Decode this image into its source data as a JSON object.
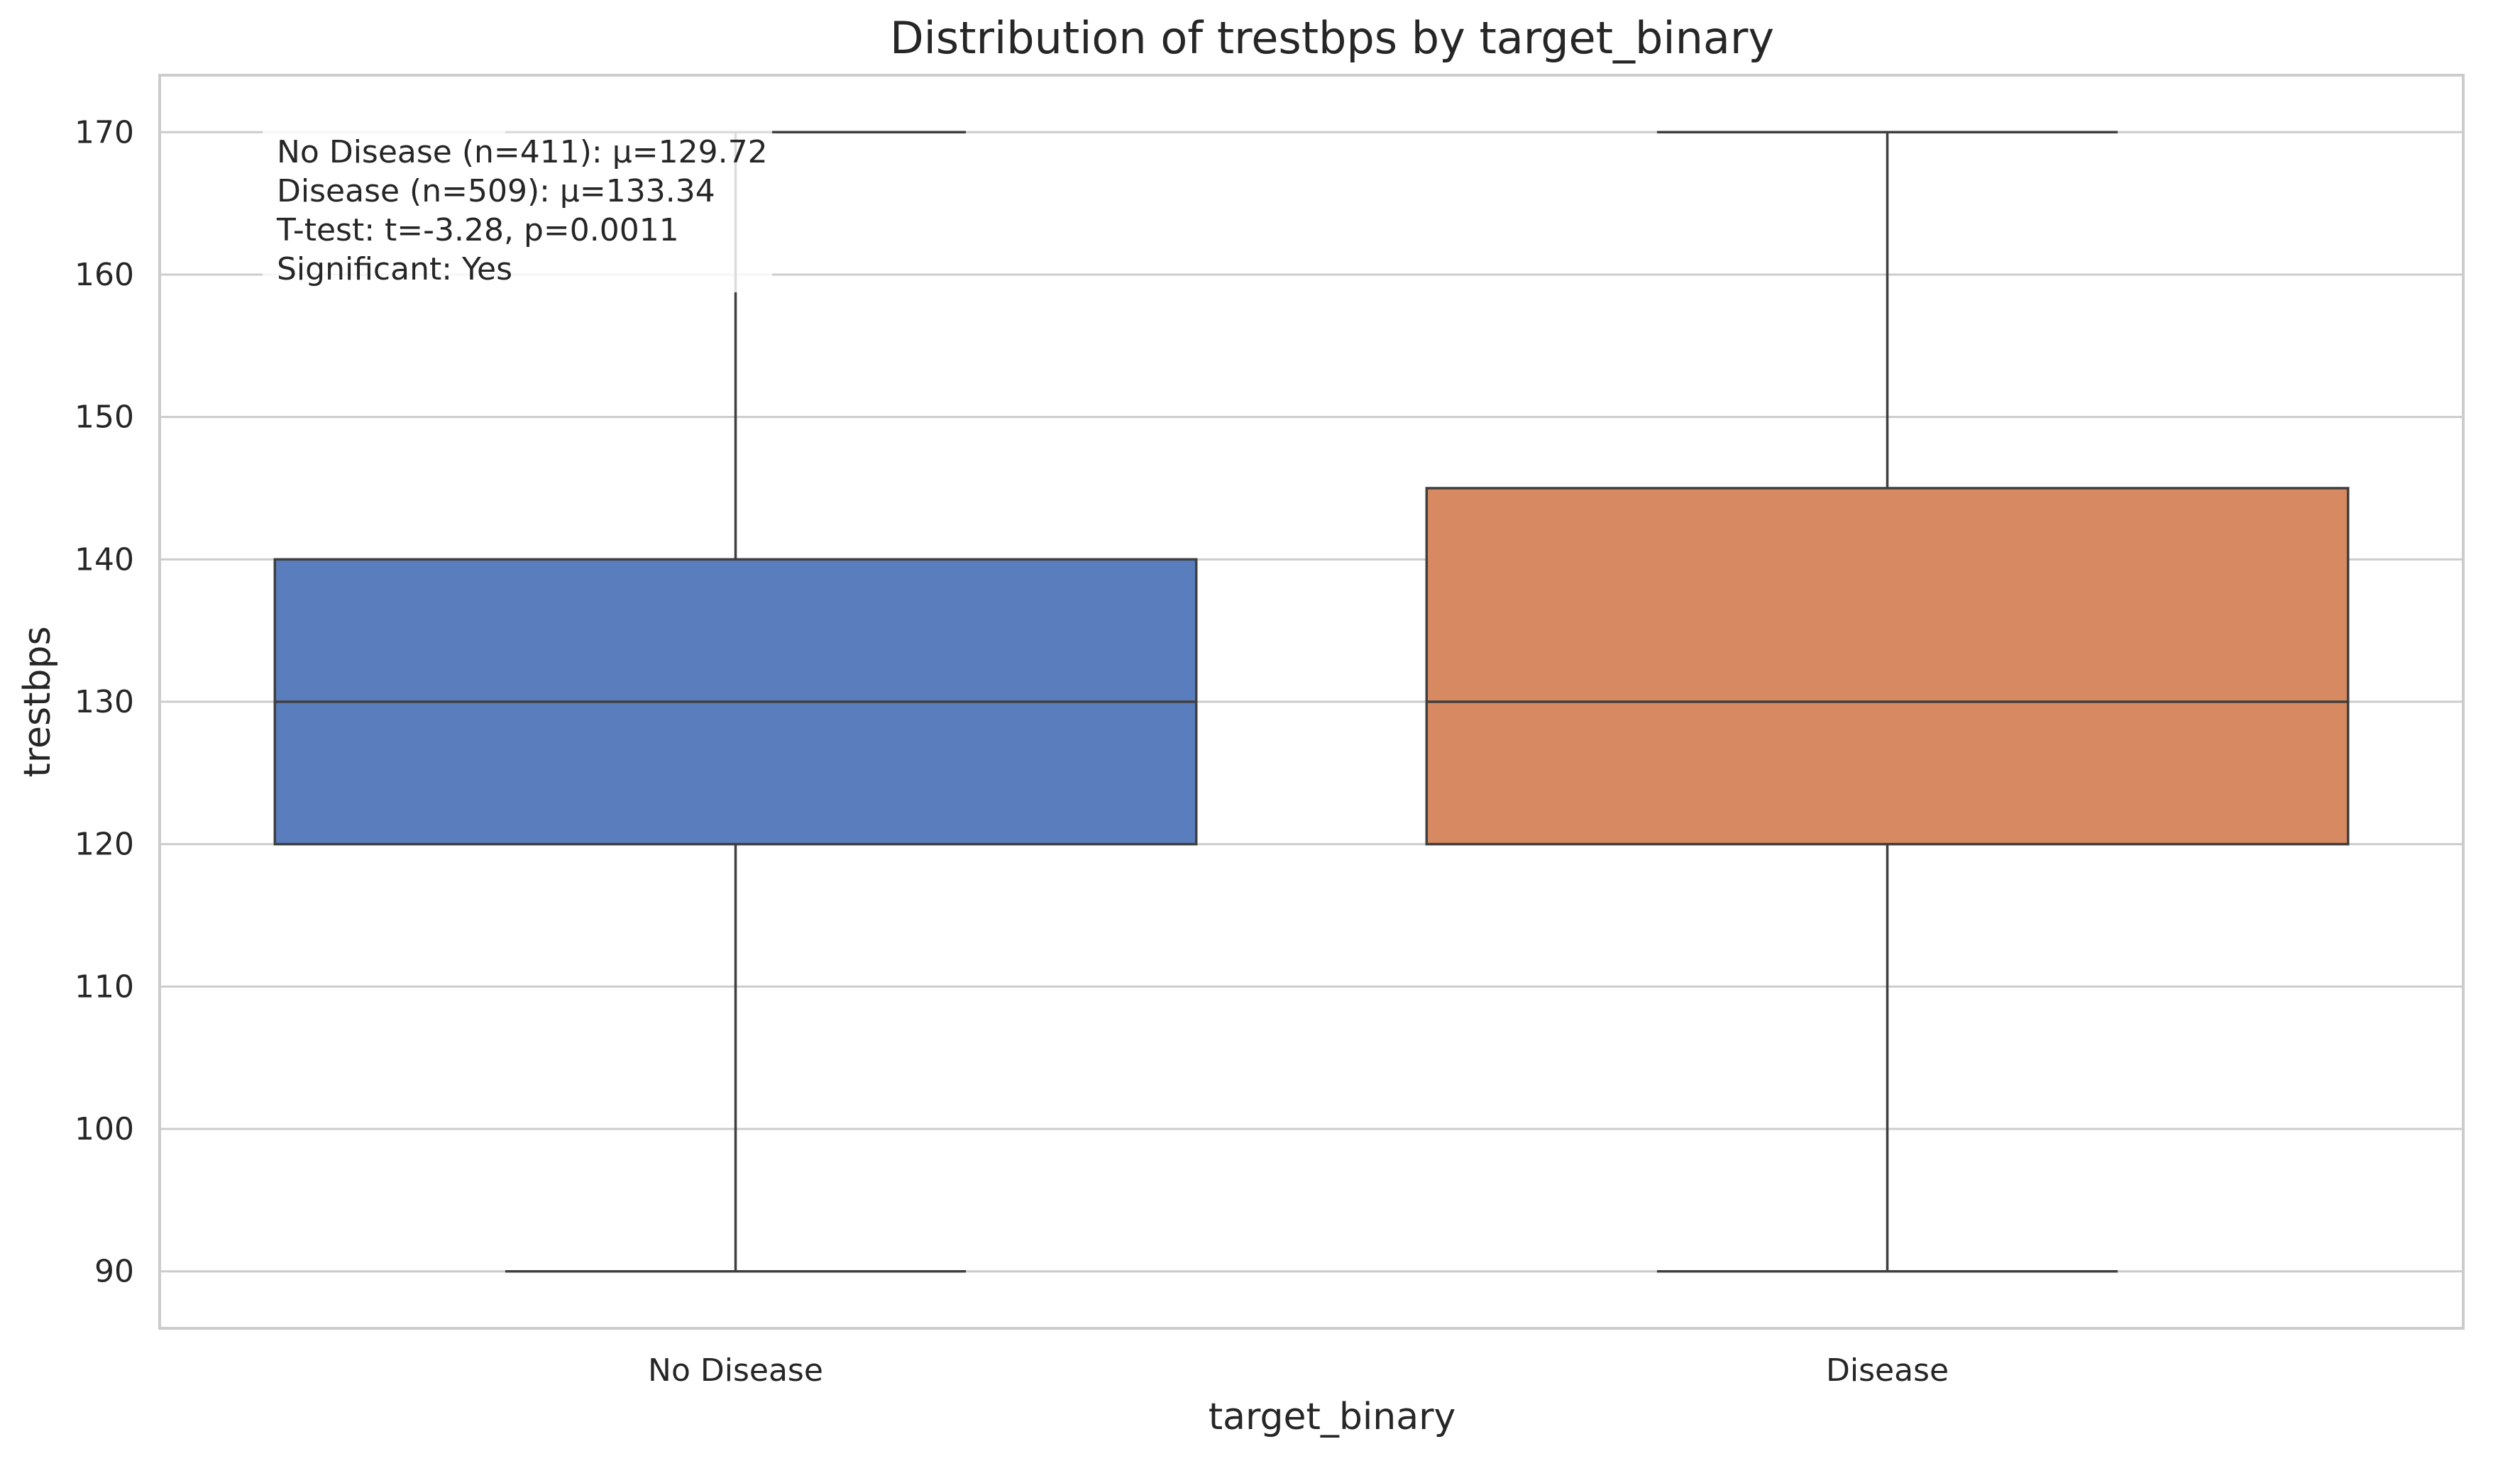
{
  "chart_data": {
    "type": "box",
    "title": "Distribution of trestbps by target_binary",
    "xlabel": "target_binary",
    "ylabel": "trestbps",
    "ylim": [
      86,
      174
    ],
    "yticks": [
      90,
      100,
      110,
      120,
      130,
      140,
      150,
      160,
      170
    ],
    "grid": true,
    "categories": [
      "No Disease",
      "Disease"
    ],
    "boxes": [
      {
        "category": "No Disease",
        "whisker_low": 90,
        "q1": 120,
        "median": 130,
        "q3": 140,
        "whisker_high": 170,
        "color": "#5a7dbe"
      },
      {
        "category": "Disease",
        "whisker_low": 90,
        "q1": 120,
        "median": 130,
        "q3": 145,
        "whisker_high": 170,
        "color": "#d78a61"
      }
    ],
    "annotation": [
      "No Disease (n=411): μ=129.72",
      "Disease (n=509): μ=133.34",
      "T-test: t=-3.28, p=0.0011",
      "Significant: Yes"
    ]
  }
}
